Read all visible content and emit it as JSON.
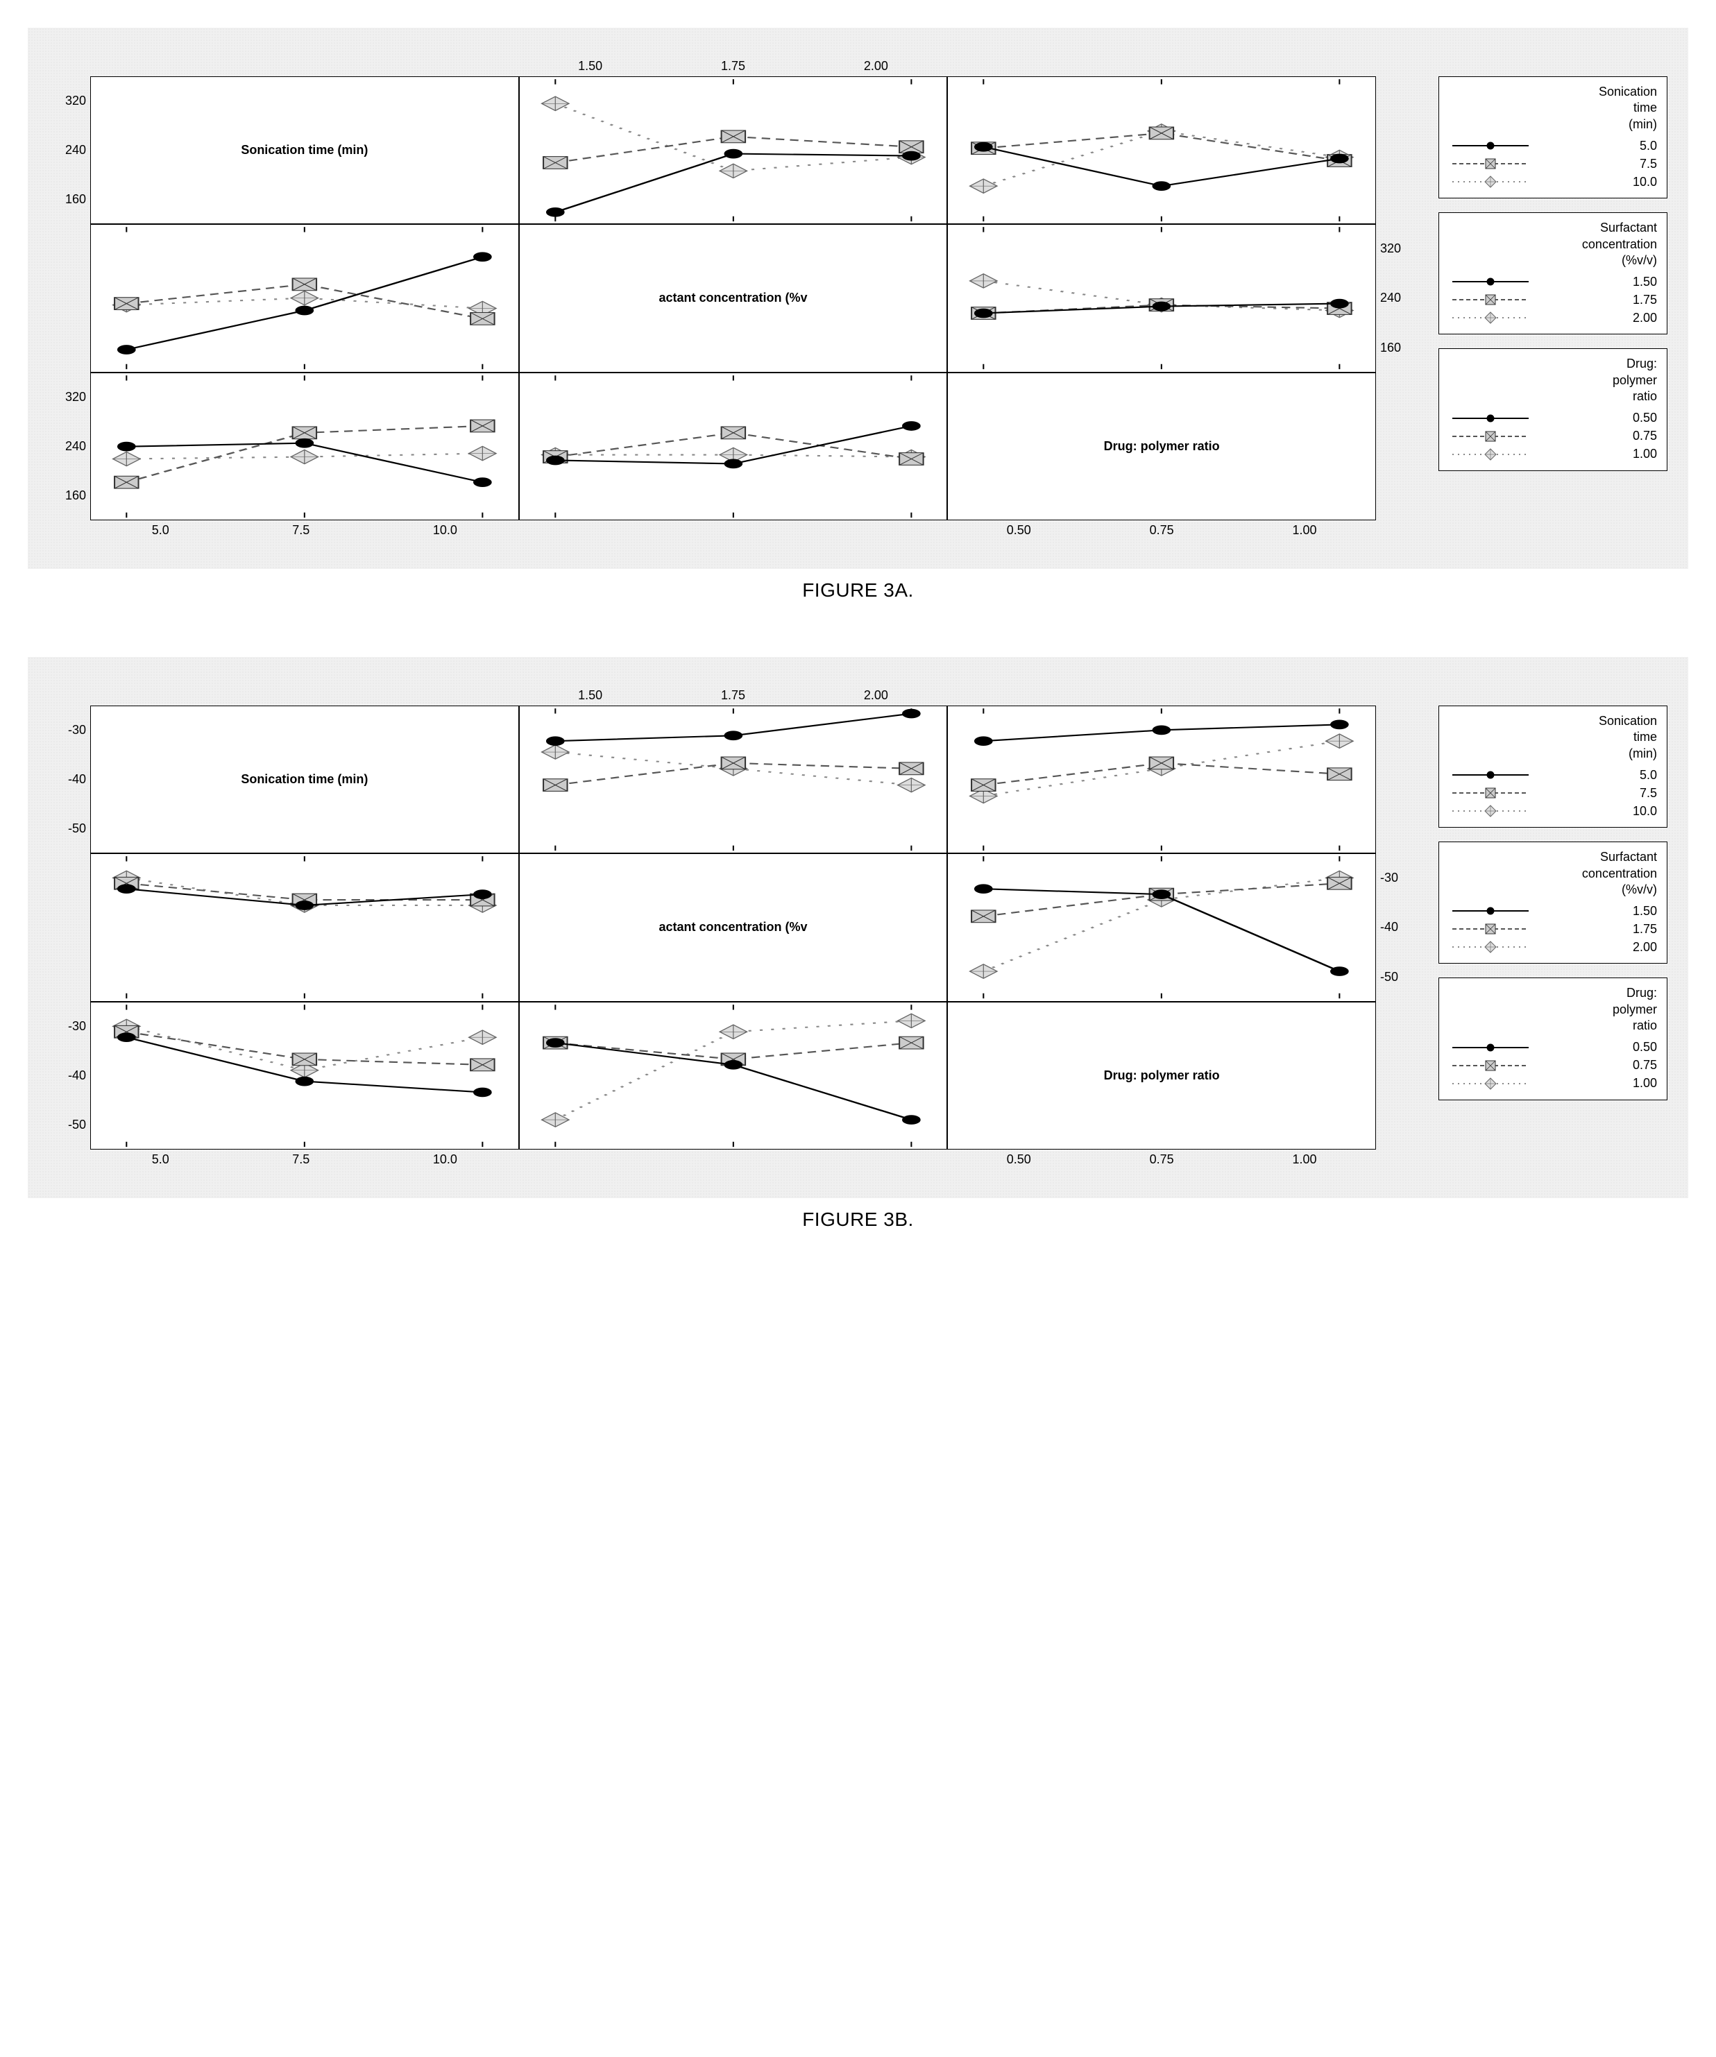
{
  "figures": [
    {
      "caption": "FIGURE 3A.",
      "ylim": [
        160,
        320
      ],
      "yticks_left": [
        320,
        240,
        160
      ],
      "yticks_right": [
        320,
        240,
        160
      ],
      "xticks_top": [
        "1.50",
        "1.75",
        "2.00"
      ],
      "xticks_bottom_left": [
        "5.0",
        "7.5",
        "10.0"
      ],
      "xticks_bottom_right": [
        "0.50",
        "0.75",
        "1.00"
      ],
      "diag_labels": [
        "Sonication time (min)",
        "actant concentration (%v",
        "Drug: polymer ratio"
      ],
      "series_style": {
        "s1": {
          "color": "#000000",
          "dash": "",
          "marker": "circle-filled"
        },
        "s2": {
          "color": "#555555",
          "dash": "6,4",
          "marker": "square-hatch"
        },
        "s3": {
          "color": "#888888",
          "dash": "2,6",
          "marker": "diamond-hatch"
        }
      },
      "legends": [
        {
          "title": "Sonication\ntime\n(min)",
          "rows": [
            {
              "style": "s1",
              "val": "5.0"
            },
            {
              "style": "s2",
              "val": "7.5"
            },
            {
              "style": "s3",
              "val": "10.0"
            }
          ]
        },
        {
          "title": "Surfactant\nconcentration\n(%v/v)",
          "rows": [
            {
              "style": "s1",
              "val": "1.50"
            },
            {
              "style": "s2",
              "val": "1.75"
            },
            {
              "style": "s3",
              "val": "2.00"
            }
          ]
        },
        {
          "title": "Drug:\npolymer\nratio",
          "rows": [
            {
              "style": "s1",
              "val": "0.50"
            },
            {
              "style": "s2",
              "val": "0.75"
            },
            {
              "style": "s3",
              "val": "1.00"
            }
          ]
        }
      ],
      "cells": {
        "r1c2": {
          "x": [
            0,
            1,
            2
          ],
          "s1": [
            150,
            235,
            232
          ],
          "s2": [
            222,
            260,
            245
          ],
          "s3": [
            308,
            210,
            230
          ]
        },
        "r1c3": {
          "x": [
            0,
            1,
            2
          ],
          "s1": [
            245,
            188,
            228
          ],
          "s2": [
            243,
            265,
            225
          ],
          "s3": [
            188,
            268,
            230
          ]
        },
        "r2c1": {
          "x": [
            0,
            1,
            2
          ],
          "s1": [
            165,
            222,
            300
          ],
          "s2": [
            232,
            260,
            210
          ],
          "s3": [
            230,
            240,
            225
          ]
        },
        "r2c3": {
          "x": [
            0,
            1,
            2
          ],
          "s1": [
            218,
            228,
            232
          ],
          "s2": [
            218,
            230,
            225
          ],
          "s3": [
            265,
            230,
            222
          ]
        },
        "r3c1": {
          "x": [
            0,
            1,
            2
          ],
          "s1": [
            240,
            245,
            188
          ],
          "s2": [
            188,
            260,
            270
          ],
          "s3": [
            222,
            225,
            230
          ]
        },
        "r3c2": {
          "x": [
            0,
            1,
            2
          ],
          "s1": [
            220,
            215,
            270
          ],
          "s2": [
            225,
            260,
            222
          ],
          "s3": [
            228,
            228,
            225
          ]
        }
      }
    },
    {
      "caption": "FIGURE 3B.",
      "ylim": [
        -50,
        -30
      ],
      "yticks_left": [
        -30,
        -40,
        -50
      ],
      "yticks_right": [
        -30,
        -40,
        -50
      ],
      "xticks_top": [
        "1.50",
        "1.75",
        "2.00"
      ],
      "xticks_bottom_left": [
        "5.0",
        "7.5",
        "10.0"
      ],
      "xticks_bottom_right": [
        "0.50",
        "0.75",
        "1.00"
      ],
      "diag_labels": [
        "Sonication time (min)",
        "actant concentration (%v",
        "Drug: polymer ratio"
      ],
      "series_style": {
        "s1": {
          "color": "#000000",
          "dash": "",
          "marker": "circle-filled"
        },
        "s2": {
          "color": "#555555",
          "dash": "6,4",
          "marker": "square-hatch"
        },
        "s3": {
          "color": "#888888",
          "dash": "2,6",
          "marker": "diamond-hatch"
        }
      },
      "legends": [
        {
          "title": "Sonication\ntime\n(min)",
          "rows": [
            {
              "style": "s1",
              "val": "5.0"
            },
            {
              "style": "s2",
              "val": "7.5"
            },
            {
              "style": "s3",
              "val": "10.0"
            }
          ]
        },
        {
          "title": "Surfactant\nconcentration\n(%v/v)",
          "rows": [
            {
              "style": "s1",
              "val": "1.50"
            },
            {
              "style": "s2",
              "val": "1.75"
            },
            {
              "style": "s3",
              "val": "2.00"
            }
          ]
        },
        {
          "title": "Drug:\npolymer\nratio",
          "rows": [
            {
              "style": "s1",
              "val": "0.50"
            },
            {
              "style": "s2",
              "val": "0.75"
            },
            {
              "style": "s3",
              "val": "1.00"
            }
          ]
        }
      ],
      "cells": {
        "r1c2": {
          "x": [
            0,
            1,
            2
          ],
          "s1": [
            -33,
            -32,
            -28
          ],
          "s2": [
            -41,
            -37,
            -38
          ],
          "s3": [
            -35,
            -38,
            -41
          ]
        },
        "r1c3": {
          "x": [
            0,
            1,
            2
          ],
          "s1": [
            -33,
            -31,
            -30
          ],
          "s2": [
            -41,
            -37,
            -39
          ],
          "s3": [
            -43,
            -38,
            -33
          ]
        },
        "r2c1": {
          "x": [
            0,
            1,
            2
          ],
          "s1": [
            -33,
            -36,
            -34
          ],
          "s2": [
            -32,
            -35,
            -35
          ],
          "s3": [
            -31,
            -36,
            -36
          ]
        },
        "r2c3": {
          "x": [
            0,
            1,
            2
          ],
          "s1": [
            -33,
            -34,
            -48
          ],
          "s2": [
            -38,
            -34,
            -32
          ],
          "s3": [
            -48,
            -35,
            -31
          ]
        },
        "r3c1": {
          "x": [
            0,
            1,
            2
          ],
          "s1": [
            -33,
            -41,
            -43
          ],
          "s2": [
            -32,
            -37,
            -38
          ],
          "s3": [
            -31,
            -39,
            -33
          ]
        },
        "r3c2": {
          "x": [
            0,
            1,
            2
          ],
          "s1": [
            -34,
            -38,
            -48
          ],
          "s2": [
            -34,
            -37,
            -34
          ],
          "s3": [
            -48,
            -32,
            -30
          ]
        }
      }
    }
  ],
  "chart_meta": {
    "type": "interaction-plot-matrix",
    "background_color": "#f0f0f0",
    "cell_background": "#ffffff",
    "border_color": "#000000",
    "title_fontsize": 18,
    "tick_fontsize": 18,
    "caption_fontsize": 28,
    "line_width": 2,
    "marker_size": 7
  }
}
